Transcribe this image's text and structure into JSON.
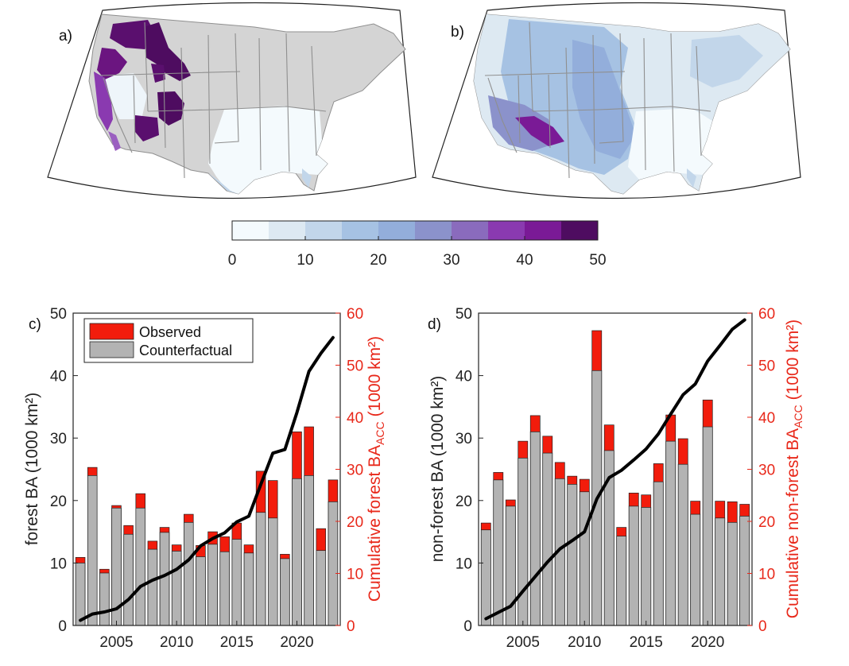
{
  "colors": {
    "observed": "#f21c0c",
    "counterfactual": "#b3b3b3",
    "cumulative_line": "#000000",
    "right_axis": "#e8281a",
    "land": "#d4d4d4",
    "state_lines": "#8f8f8f",
    "scale": [
      "#f4fafd",
      "#dde9f2",
      "#c2d6ea",
      "#a6c2e3",
      "#93aedb",
      "#8b92cb",
      "#8a6bbd",
      "#8a3ab0",
      "#7a1a96",
      "#4e0c60"
    ]
  },
  "map_a": {
    "panel_label": "a)"
  },
  "map_b": {
    "panel_label": "b)"
  },
  "colorbar": {
    "ticks": [
      "0",
      "10",
      "20",
      "30",
      "40",
      "50"
    ]
  },
  "chart_data": [
    {
      "panel_label": "c)",
      "type": "bar",
      "stacked": true,
      "x": [
        2002,
        2003,
        2004,
        2005,
        2006,
        2007,
        2008,
        2009,
        2010,
        2011,
        2012,
        2013,
        2014,
        2015,
        2016,
        2017,
        2018,
        2019,
        2020,
        2021,
        2022,
        2023
      ],
      "series": [
        {
          "name": "Counterfactual",
          "values": [
            10,
            24,
            8.4,
            18.8,
            14.6,
            18.8,
            12.2,
            14.9,
            11.9,
            16.5,
            11,
            13,
            11.8,
            13.8,
            11.6,
            18.1,
            17.2,
            10.7,
            23.5,
            24,
            12,
            19.8
          ]
        },
        {
          "name": "Observed",
          "values": [
            10.9,
            25.3,
            9,
            19.2,
            16,
            21.1,
            13.5,
            15.7,
            12.9,
            17.8,
            12.8,
            15,
            14.2,
            16.4,
            12.9,
            24.7,
            23.2,
            11.4,
            31,
            31.8,
            15.5,
            23.3
          ]
        }
      ],
      "cumulative_line": {
        "axis": "right",
        "values": [
          1,
          2.2,
          2.6,
          3.2,
          5,
          7.5,
          8.7,
          9.6,
          10.8,
          12.6,
          15.3,
          16.7,
          17.8,
          19.9,
          21,
          27.1,
          33.1,
          33.8,
          40.9,
          48.8,
          52.3,
          55.3
        ]
      },
      "ylabel_left": "forest BA (1000 km²)",
      "ylabel_right_main": "Cumulative forest BA",
      "ylabel_right_sub": "ACC",
      "ylabel_right_unit": "(1000 km²)",
      "ylim_left": [
        0,
        50
      ],
      "ylim_right": [
        0,
        60
      ],
      "yticks_left": [
        "0",
        "10",
        "20",
        "30",
        "40",
        "50"
      ],
      "yticks_right": [
        "0",
        "10",
        "20",
        "30",
        "40",
        "50",
        "60"
      ],
      "xticks": [
        "2005",
        "2010",
        "2015",
        "2020"
      ],
      "xtick_values": [
        2005,
        2010,
        2015,
        2020
      ],
      "xlim": [
        2001.4,
        2023.6
      ],
      "legend": {
        "placement": "top-left",
        "entries": [
          "Observed",
          "Counterfactual"
        ]
      }
    },
    {
      "panel_label": "d)",
      "type": "bar",
      "stacked": true,
      "x": [
        2002,
        2003,
        2004,
        2005,
        2006,
        2007,
        2008,
        2009,
        2010,
        2011,
        2012,
        2013,
        2014,
        2015,
        2016,
        2017,
        2018,
        2019,
        2020,
        2021,
        2022,
        2023
      ],
      "series": [
        {
          "name": "Counterfactual",
          "values": [
            15.3,
            23.3,
            19.1,
            26.8,
            31,
            27.6,
            23.5,
            22.6,
            21.4,
            40.8,
            28,
            14.3,
            19.1,
            18.9,
            23,
            29.5,
            25.8,
            17.8,
            31.8,
            17.2,
            16.5,
            17.5
          ]
        },
        {
          "name": "Observed",
          "values": [
            16.4,
            24.5,
            20.1,
            29.5,
            33.6,
            30.3,
            26.1,
            23.9,
            23.4,
            47.2,
            32.1,
            15.7,
            21.2,
            20.9,
            25.9,
            33.7,
            29.9,
            19.9,
            36.1,
            19.9,
            19.8,
            19.4
          ]
        }
      ],
      "cumulative_line": {
        "axis": "right",
        "values": [
          1.3,
          2.5,
          3.7,
          6.6,
          9.4,
          12.2,
          14.7,
          16.3,
          18,
          24.3,
          28.4,
          29.8,
          31.8,
          33.9,
          36.8,
          40.6,
          44.3,
          46.4,
          50.8,
          53.8,
          56.9,
          58.7
        ]
      },
      "ylabel_left": "non-forest BA (1000 km²)",
      "ylabel_right_main": "Cumulative non-forest BA",
      "ylabel_right_sub": "ACC",
      "ylabel_right_unit": "(1000 km²)",
      "ylim_left": [
        0,
        50
      ],
      "ylim_right": [
        0,
        60
      ],
      "yticks_left": [
        "0",
        "10",
        "20",
        "30",
        "40",
        "50"
      ],
      "yticks_right": [
        "0",
        "10",
        "20",
        "30",
        "40",
        "50",
        "60"
      ],
      "xticks": [
        "2005",
        "2010",
        "2015",
        "2020"
      ],
      "xtick_values": [
        2005,
        2010,
        2015,
        2020
      ],
      "xlim": [
        2001.4,
        2023.6
      ]
    }
  ]
}
